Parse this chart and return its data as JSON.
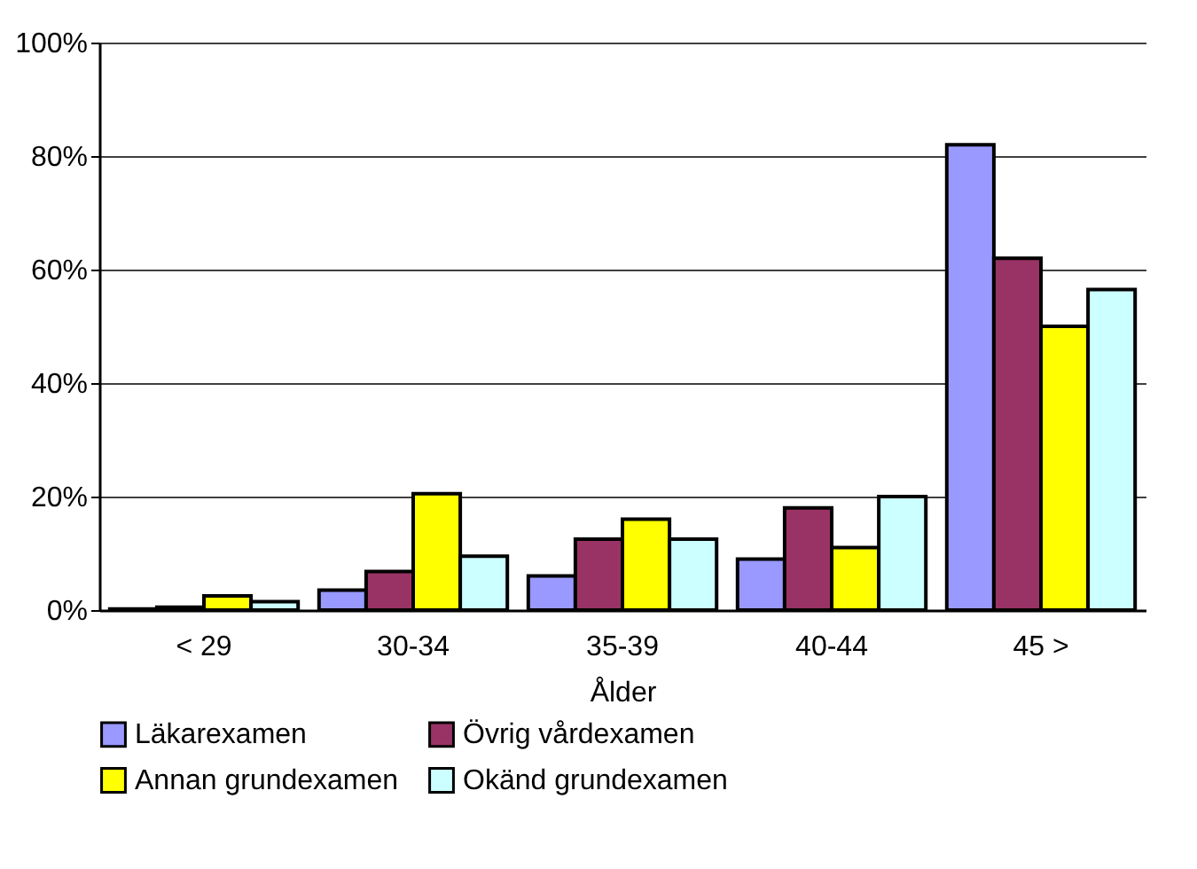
{
  "chart_data": {
    "type": "bar",
    "xlabel": "Ålder",
    "categories": [
      "< 29",
      "30-34",
      "35-39",
      "40-44",
      "45 >"
    ],
    "series": [
      {
        "name": "Läkarexamen",
        "color": "#9999ff",
        "values": [
          0.2,
          3.5,
          6,
          9,
          82
        ]
      },
      {
        "name": "Övrig vårdexamen",
        "color": "#993366",
        "values": [
          0.5,
          6.8,
          12.5,
          18,
          62
        ]
      },
      {
        "name": "Annan grundexamen",
        "color": "#ffff00",
        "values": [
          2.5,
          20.5,
          16,
          11,
          50
        ]
      },
      {
        "name": "Okänd grundexamen",
        "color": "#ccffff",
        "values": [
          1.5,
          9.5,
          12.5,
          20,
          56.5
        ]
      }
    ],
    "ylim": [
      0,
      100
    ],
    "yticks": [
      {
        "value": 0,
        "label": "0%"
      },
      {
        "value": 20,
        "label": "20%"
      },
      {
        "value": 40,
        "label": "40%"
      },
      {
        "value": 60,
        "label": "60%"
      },
      {
        "value": 80,
        "label": "80%"
      },
      {
        "value": 100,
        "label": "100%"
      }
    ],
    "grid": "y",
    "legend": "bottom"
  }
}
